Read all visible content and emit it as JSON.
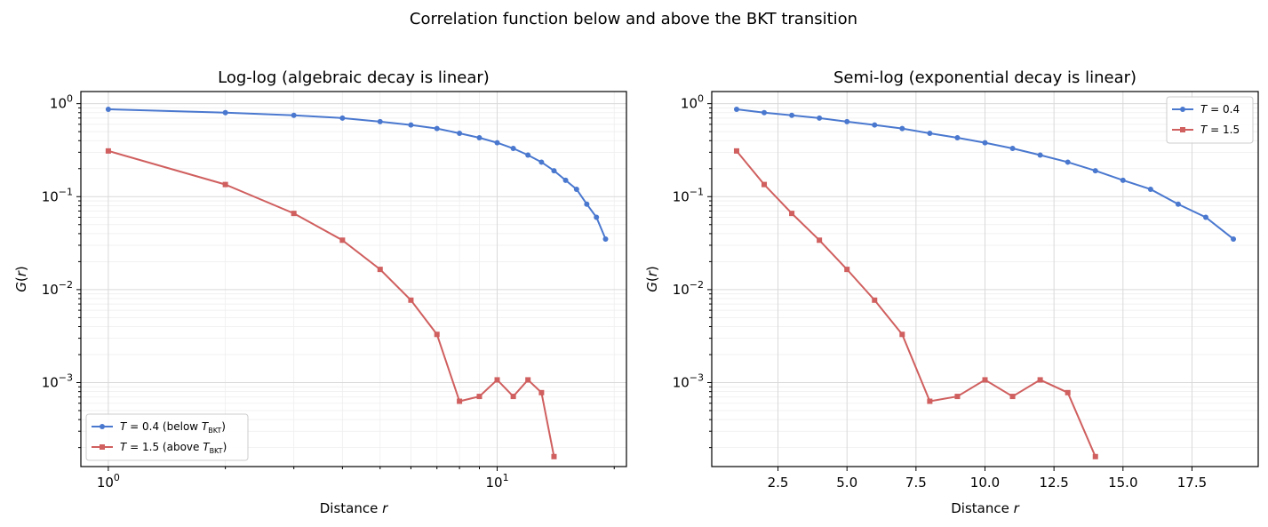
{
  "figure": {
    "suptitle": "Correlation function below and above the BKT transition"
  },
  "chart_data": [
    {
      "type": "line",
      "title": "Log-log (algebraic decay is linear)",
      "xlabel": "Distance r",
      "ylabel": "G(r)",
      "xscale": "log",
      "yscale": "log",
      "xlim": [
        0.85,
        21.5
      ],
      "ylim": [
        0.000125,
        1.35
      ],
      "x_ticks": [
        {
          "value": 1,
          "base": "10",
          "exp": "0"
        },
        {
          "value": 10,
          "base": "10",
          "exp": "1"
        }
      ],
      "y_ticks": [
        {
          "value": 0.001,
          "base": "10",
          "exp": "−3"
        },
        {
          "value": 0.01,
          "base": "10",
          "exp": "−2"
        },
        {
          "value": 0.1,
          "base": "10",
          "exp": "−1"
        },
        {
          "value": 1,
          "base": "10",
          "exp": "0"
        }
      ],
      "grid": true,
      "legend": {
        "position": "lower-left",
        "entries": [
          {
            "text_pre": "T",
            "text_mid": " = 0.4 (below ",
            "text_italic": "T",
            "text_sub": "BKT",
            "text_post": ")"
          },
          {
            "text_pre": "T",
            "text_mid": " = 1.5 (above ",
            "text_italic": "T",
            "text_sub": "BKT",
            "text_post": ")"
          }
        ]
      },
      "series": [
        {
          "color": "#4a78cf",
          "marker": "circle",
          "x": [
            1,
            2,
            3,
            4,
            5,
            6,
            7,
            8,
            9,
            10,
            11,
            12,
            13,
            14,
            15,
            16,
            17,
            18,
            19
          ],
          "y": [
            0.87,
            0.8,
            0.75,
            0.7,
            0.64,
            0.59,
            0.54,
            0.48,
            0.43,
            0.38,
            0.33,
            0.28,
            0.235,
            0.19,
            0.15,
            0.12,
            0.083,
            0.06,
            0.035
          ]
        },
        {
          "color": "#d05f5f",
          "marker": "square",
          "x": [
            1,
            2,
            3,
            4,
            5,
            6,
            7,
            8,
            9,
            10,
            11,
            12,
            13,
            14
          ],
          "y": [
            0.31,
            0.135,
            0.066,
            0.034,
            0.0165,
            0.0077,
            0.0033,
            0.00063,
            0.00071,
            0.00107,
            0.00071,
            0.00107,
            0.00078,
            0.00016
          ]
        }
      ]
    },
    {
      "type": "line",
      "title": "Semi-log (exponential decay is linear)",
      "xlabel": "Distance r",
      "ylabel": "G(r)",
      "xscale": "linear",
      "yscale": "log",
      "xlim": [
        0.1,
        19.9
      ],
      "ylim": [
        0.000125,
        1.35
      ],
      "x_ticks": [
        {
          "value": 2.5,
          "label": "2.5"
        },
        {
          "value": 5,
          "label": "5.0"
        },
        {
          "value": 7.5,
          "label": "7.5"
        },
        {
          "value": 10,
          "label": "10.0"
        },
        {
          "value": 12.5,
          "label": "12.5"
        },
        {
          "value": 15,
          "label": "15.0"
        },
        {
          "value": 17.5,
          "label": "17.5"
        }
      ],
      "y_ticks": [
        {
          "value": 0.001,
          "base": "10",
          "exp": "−3"
        },
        {
          "value": 0.01,
          "base": "10",
          "exp": "−2"
        },
        {
          "value": 0.1,
          "base": "10",
          "exp": "−1"
        },
        {
          "value": 1,
          "base": "10",
          "exp": "0"
        }
      ],
      "grid": true,
      "legend": {
        "position": "upper-right",
        "entries": [
          {
            "text_pre": "T",
            "text_mid": " = 0.4",
            "text_italic": "",
            "text_sub": "",
            "text_post": ""
          },
          {
            "text_pre": "T",
            "text_mid": " = 1.5",
            "text_italic": "",
            "text_sub": "",
            "text_post": ""
          }
        ]
      },
      "series": [
        {
          "color": "#4a78cf",
          "marker": "circle",
          "x": [
            1,
            2,
            3,
            4,
            5,
            6,
            7,
            8,
            9,
            10,
            11,
            12,
            13,
            14,
            15,
            16,
            17,
            18,
            19
          ],
          "y": [
            0.87,
            0.8,
            0.75,
            0.7,
            0.64,
            0.59,
            0.54,
            0.48,
            0.43,
            0.38,
            0.33,
            0.28,
            0.235,
            0.19,
            0.15,
            0.12,
            0.083,
            0.06,
            0.035
          ]
        },
        {
          "color": "#d05f5f",
          "marker": "square",
          "x": [
            1,
            2,
            3,
            4,
            5,
            6,
            7,
            8,
            9,
            10,
            11,
            12,
            13,
            14
          ],
          "y": [
            0.31,
            0.135,
            0.066,
            0.034,
            0.0165,
            0.0077,
            0.0033,
            0.00063,
            0.00071,
            0.00107,
            0.00071,
            0.00107,
            0.00078,
            0.00016
          ]
        }
      ]
    }
  ]
}
